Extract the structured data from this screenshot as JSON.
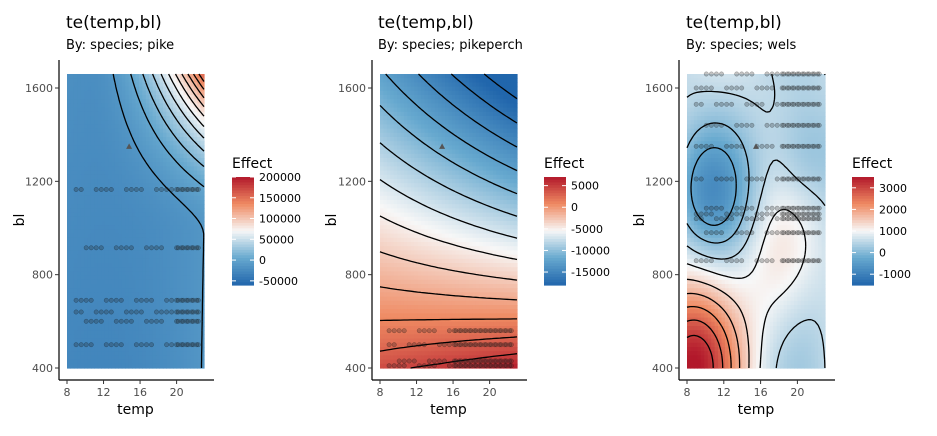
{
  "chart_data": [
    {
      "type": "heatmap",
      "title": "te(temp,bl)",
      "subtitle": "By: species; pike",
      "xlabel": "temp",
      "ylabel": "bl",
      "xlim": [
        8,
        23
      ],
      "ylim": [
        400,
        1660
      ],
      "x_ticks": [
        8,
        12,
        16,
        20
      ],
      "y_ticks": [
        400,
        800,
        1200,
        1600
      ],
      "legend": {
        "title": "Effect",
        "position": "right",
        "ticks": [
          200000,
          150000,
          100000,
          50000,
          0,
          -50000
        ]
      },
      "color_range": [
        -60000,
        200000
      ],
      "colors": {
        "low": "#2166ac",
        "mid": "#f7f7f7",
        "high": "#b2182b"
      },
      "mode": "pike",
      "contour_levels": 12,
      "data_points": {
        "bl_levels": [
          500,
          600,
          640,
          690,
          915,
          1165
        ],
        "temp_range": [
          9,
          22.5
        ],
        "dense_temp_from": 19.5
      },
      "marker": {
        "temp": 14.8,
        "bl": 1350
      }
    },
    {
      "type": "heatmap",
      "title": "te(temp,bl)",
      "subtitle": "By: species; pikeperch",
      "xlabel": "temp",
      "ylabel": "bl",
      "xlim": [
        8,
        23
      ],
      "ylim": [
        400,
        1660
      ],
      "x_ticks": [
        8,
        12,
        16,
        20
      ],
      "y_ticks": [
        400,
        800,
        1200,
        1600
      ],
      "legend": {
        "title": "Effect",
        "position": "right",
        "ticks": [
          5000,
          0,
          -5000,
          -10000,
          -15000
        ]
      },
      "color_range": [
        -18000,
        7000
      ],
      "colors": {
        "low": "#2166ac",
        "mid": "#f7f7f7",
        "high": "#b2182b"
      },
      "mode": "pikeperch",
      "contour_levels": 14,
      "data_points": {
        "bl_levels": [
          410,
          430,
          500,
          560
        ],
        "temp_range": [
          9,
          22.5
        ],
        "dense_temp_from": 16
      },
      "marker": {
        "temp": 14.8,
        "bl": 1350
      }
    },
    {
      "type": "heatmap",
      "title": "te(temp,bl)",
      "subtitle": "By: species; wels",
      "xlabel": "temp",
      "ylabel": "bl",
      "xlim": [
        8,
        23
      ],
      "ylim": [
        400,
        1660
      ],
      "x_ticks": [
        8,
        12,
        16,
        20
      ],
      "y_ticks": [
        400,
        800,
        1200,
        1600
      ],
      "legend": {
        "title": "Effect",
        "position": "right",
        "ticks": [
          3000,
          2000,
          1000,
          0,
          -1000
        ]
      },
      "color_range": [
        -1500,
        3500
      ],
      "colors": {
        "low": "#2166ac",
        "mid": "#f7f7f7",
        "high": "#b2182b"
      },
      "mode": "wels",
      "contour_levels": 10,
      "data_points": {
        "bl_levels": [
          860,
          980,
          1040,
          1060,
          1085,
          1210,
          1350,
          1440,
          1530,
          1600,
          1660
        ],
        "temp_range": [
          9,
          22.5
        ],
        "dense_temp_from": 18
      },
      "marker": {
        "temp": 15.5,
        "bl": 1350
      }
    }
  ]
}
